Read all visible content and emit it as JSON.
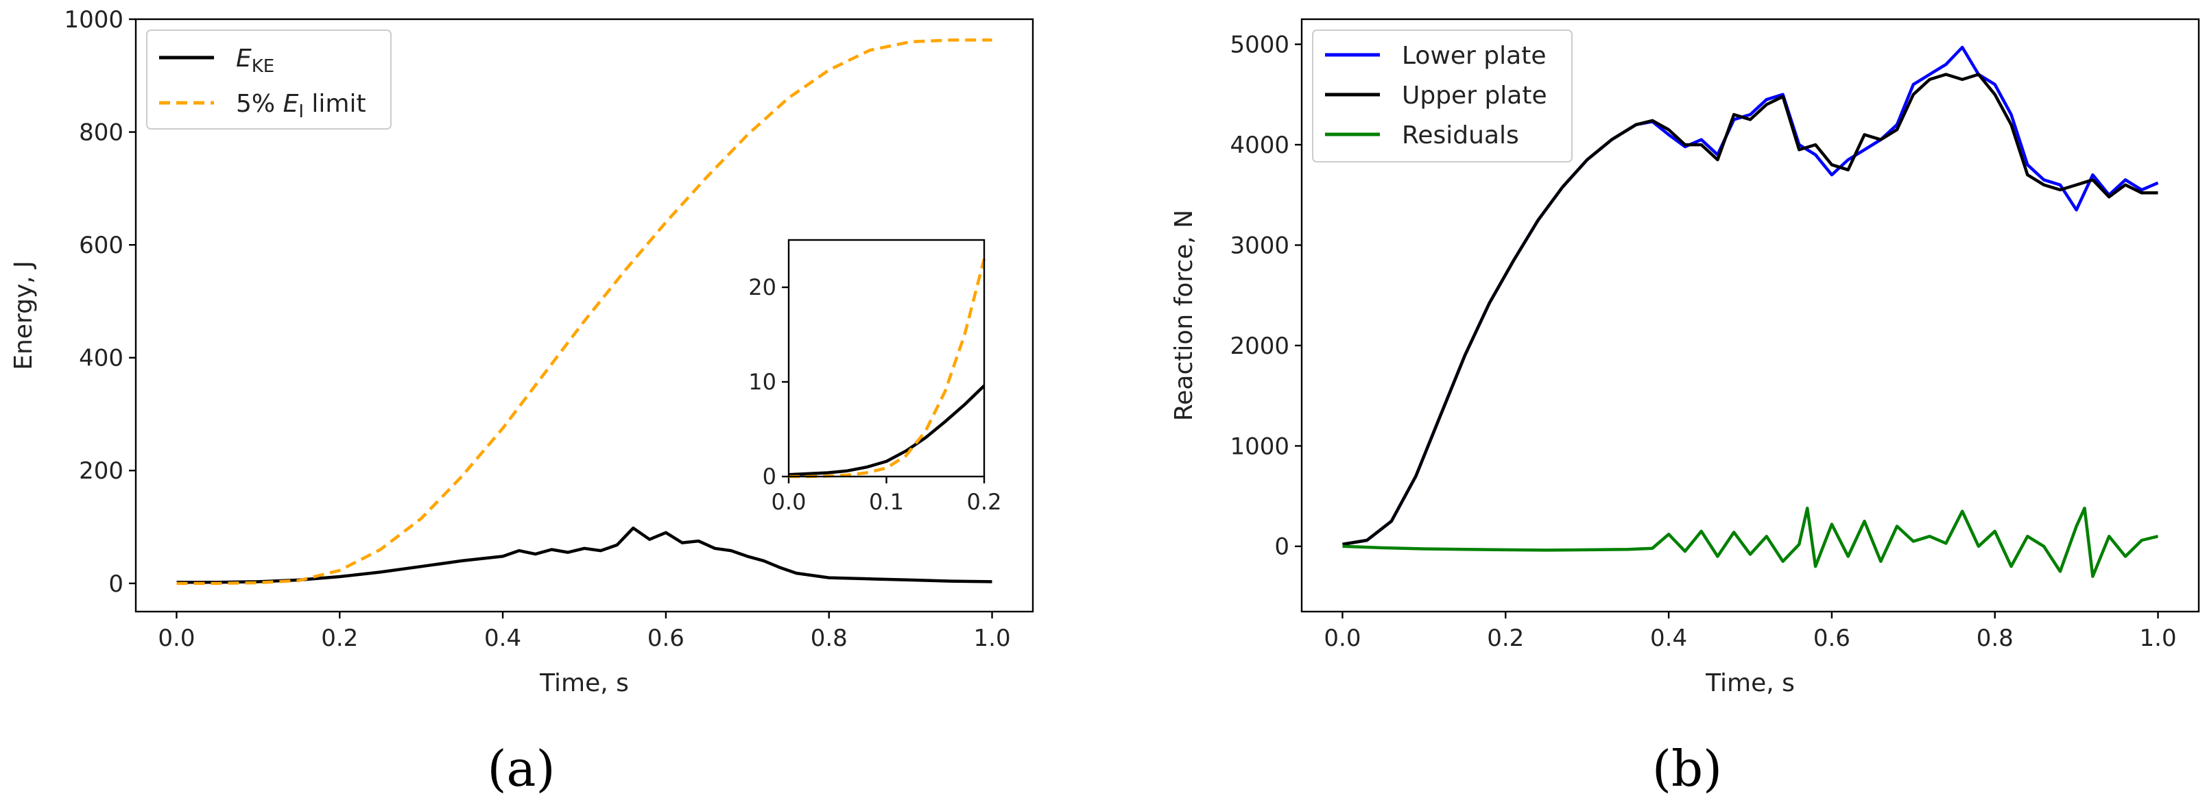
{
  "chart_data": [
    {
      "type": "line",
      "panel": "(a)",
      "xlabel": "Time, s",
      "ylabel": "Energy, J",
      "xlim": [
        -0.05,
        1.05
      ],
      "ylim": [
        -50,
        1000
      ],
      "xticks": [
        "0.0",
        "0.2",
        "0.4",
        "0.6",
        "0.8",
        "1.0"
      ],
      "yticks": [
        "0",
        "200",
        "400",
        "600",
        "800",
        "1000"
      ],
      "legend_position": "top-left",
      "series": [
        {
          "name": "E_KE",
          "legend_main": "E",
          "legend_sub": "KE",
          "color": "#000000",
          "dash": "solid",
          "x": [
            0,
            0.05,
            0.1,
            0.15,
            0.2,
            0.25,
            0.3,
            0.35,
            0.4,
            0.42,
            0.44,
            0.46,
            0.48,
            0.5,
            0.52,
            0.54,
            0.56,
            0.58,
            0.6,
            0.62,
            0.64,
            0.66,
            0.68,
            0.7,
            0.72,
            0.74,
            0.76,
            0.8,
            0.85,
            0.9,
            0.95,
            1.0
          ],
          "y": [
            2,
            2,
            3,
            6,
            12,
            20,
            30,
            40,
            48,
            58,
            52,
            60,
            55,
            62,
            58,
            68,
            98,
            78,
            90,
            72,
            75,
            62,
            58,
            48,
            40,
            28,
            18,
            10,
            8,
            6,
            4,
            3
          ]
        },
        {
          "name": "5% E_I limit",
          "legend_prefix": "5% ",
          "legend_main": "E",
          "legend_sub": "I",
          "legend_suffix": " limit",
          "color": "#FFA500",
          "dash": "dashed",
          "x": [
            0,
            0.05,
            0.1,
            0.15,
            0.2,
            0.25,
            0.3,
            0.35,
            0.4,
            0.45,
            0.5,
            0.55,
            0.6,
            0.65,
            0.7,
            0.75,
            0.8,
            0.85,
            0.9,
            0.95,
            1.0
          ],
          "y": [
            0,
            0,
            1,
            5,
            23,
            60,
            115,
            190,
            275,
            370,
            465,
            555,
            640,
            720,
            795,
            860,
            910,
            945,
            960,
            963,
            963
          ]
        }
      ],
      "inset": {
        "xlim": [
          0,
          0.2
        ],
        "ylim": [
          0,
          25
        ],
        "xticks": [
          "0.0",
          "0.1",
          "0.2"
        ],
        "yticks": [
          "0",
          "10",
          "20"
        ],
        "series": [
          {
            "name": "E_KE",
            "color": "#000000",
            "dash": "solid",
            "x": [
              0,
              0.02,
              0.04,
              0.06,
              0.08,
              0.1,
              0.12,
              0.14,
              0.16,
              0.18,
              0.2
            ],
            "y": [
              0.2,
              0.3,
              0.4,
              0.6,
              1.0,
              1.6,
              2.7,
              4.1,
              5.8,
              7.6,
              9.6
            ]
          },
          {
            "name": "5% E_I limit",
            "color": "#FFA500",
            "dash": "dashed",
            "x": [
              0,
              0.02,
              0.04,
              0.06,
              0.08,
              0.1,
              0.12,
              0.14,
              0.16,
              0.18,
              0.2
            ],
            "y": [
              0,
              0,
              0.05,
              0.15,
              0.4,
              0.9,
              2.2,
              4.8,
              9.0,
              15.0,
              23.0
            ]
          }
        ]
      }
    },
    {
      "type": "line",
      "panel": "(b)",
      "xlabel": "Time, s",
      "ylabel": "Reaction force, N",
      "xlim": [
        -0.05,
        1.05
      ],
      "ylim": [
        -650,
        5250
      ],
      "xticks": [
        "0.0",
        "0.2",
        "0.4",
        "0.6",
        "0.8",
        "1.0"
      ],
      "yticks": [
        "0",
        "1000",
        "2000",
        "3000",
        "4000",
        "5000"
      ],
      "legend_position": "top-left",
      "series": [
        {
          "name": "Lower plate",
          "color": "#0000FF",
          "dash": "solid",
          "x": [
            0,
            0.03,
            0.06,
            0.09,
            0.12,
            0.15,
            0.18,
            0.21,
            0.24,
            0.27,
            0.3,
            0.33,
            0.36,
            0.38,
            0.4,
            0.42,
            0.44,
            0.46,
            0.48,
            0.5,
            0.52,
            0.54,
            0.56,
            0.58,
            0.6,
            0.62,
            0.64,
            0.66,
            0.68,
            0.7,
            0.72,
            0.74,
            0.76,
            0.78,
            0.8,
            0.82,
            0.84,
            0.86,
            0.88,
            0.9,
            0.92,
            0.94,
            0.96,
            0.98,
            1.0
          ],
          "y": [
            20,
            60,
            250,
            700,
            1300,
            1900,
            2420,
            2850,
            3250,
            3580,
            3850,
            4050,
            4200,
            4230,
            4100,
            3980,
            4050,
            3900,
            4250,
            4300,
            4450,
            4500,
            4000,
            3900,
            3700,
            3850,
            3950,
            4050,
            4200,
            4600,
            4700,
            4800,
            4970,
            4700,
            4600,
            4300,
            3800,
            3650,
            3600,
            3350,
            3700,
            3500,
            3650,
            3550,
            3620
          ]
        },
        {
          "name": "Upper plate",
          "color": "#000000",
          "dash": "solid",
          "x": [
            0,
            0.03,
            0.06,
            0.09,
            0.12,
            0.15,
            0.18,
            0.21,
            0.24,
            0.27,
            0.3,
            0.33,
            0.36,
            0.38,
            0.4,
            0.42,
            0.44,
            0.46,
            0.48,
            0.5,
            0.52,
            0.54,
            0.56,
            0.58,
            0.6,
            0.62,
            0.64,
            0.66,
            0.68,
            0.7,
            0.72,
            0.74,
            0.76,
            0.78,
            0.8,
            0.82,
            0.84,
            0.86,
            0.88,
            0.9,
            0.92,
            0.94,
            0.96,
            0.98,
            1.0
          ],
          "y": [
            20,
            60,
            250,
            700,
            1300,
            1900,
            2420,
            2850,
            3250,
            3580,
            3850,
            4050,
            4200,
            4240,
            4150,
            4000,
            4000,
            3850,
            4300,
            4250,
            4400,
            4480,
            3950,
            4000,
            3800,
            3750,
            4100,
            4050,
            4150,
            4500,
            4650,
            4700,
            4650,
            4700,
            4500,
            4200,
            3700,
            3600,
            3550,
            3600,
            3650,
            3480,
            3600,
            3520,
            3520
          ]
        },
        {
          "name": "Residuals",
          "color": "#008000",
          "dash": "solid",
          "x": [
            0,
            0.05,
            0.1,
            0.15,
            0.2,
            0.25,
            0.3,
            0.35,
            0.38,
            0.4,
            0.42,
            0.44,
            0.46,
            0.48,
            0.5,
            0.52,
            0.54,
            0.56,
            0.57,
            0.58,
            0.6,
            0.62,
            0.64,
            0.66,
            0.68,
            0.7,
            0.72,
            0.74,
            0.76,
            0.78,
            0.8,
            0.82,
            0.84,
            0.86,
            0.88,
            0.9,
            0.91,
            0.92,
            0.94,
            0.96,
            0.98,
            1.0
          ],
          "y": [
            0,
            -15,
            -25,
            -30,
            -35,
            -38,
            -35,
            -30,
            -20,
            120,
            -50,
            150,
            -100,
            140,
            -80,
            100,
            -150,
            20,
            380,
            -200,
            220,
            -100,
            250,
            -150,
            200,
            50,
            100,
            30,
            350,
            0,
            150,
            -200,
            100,
            0,
            -250,
            200,
            380,
            -300,
            100,
            -100,
            60,
            100
          ]
        }
      ]
    }
  ]
}
